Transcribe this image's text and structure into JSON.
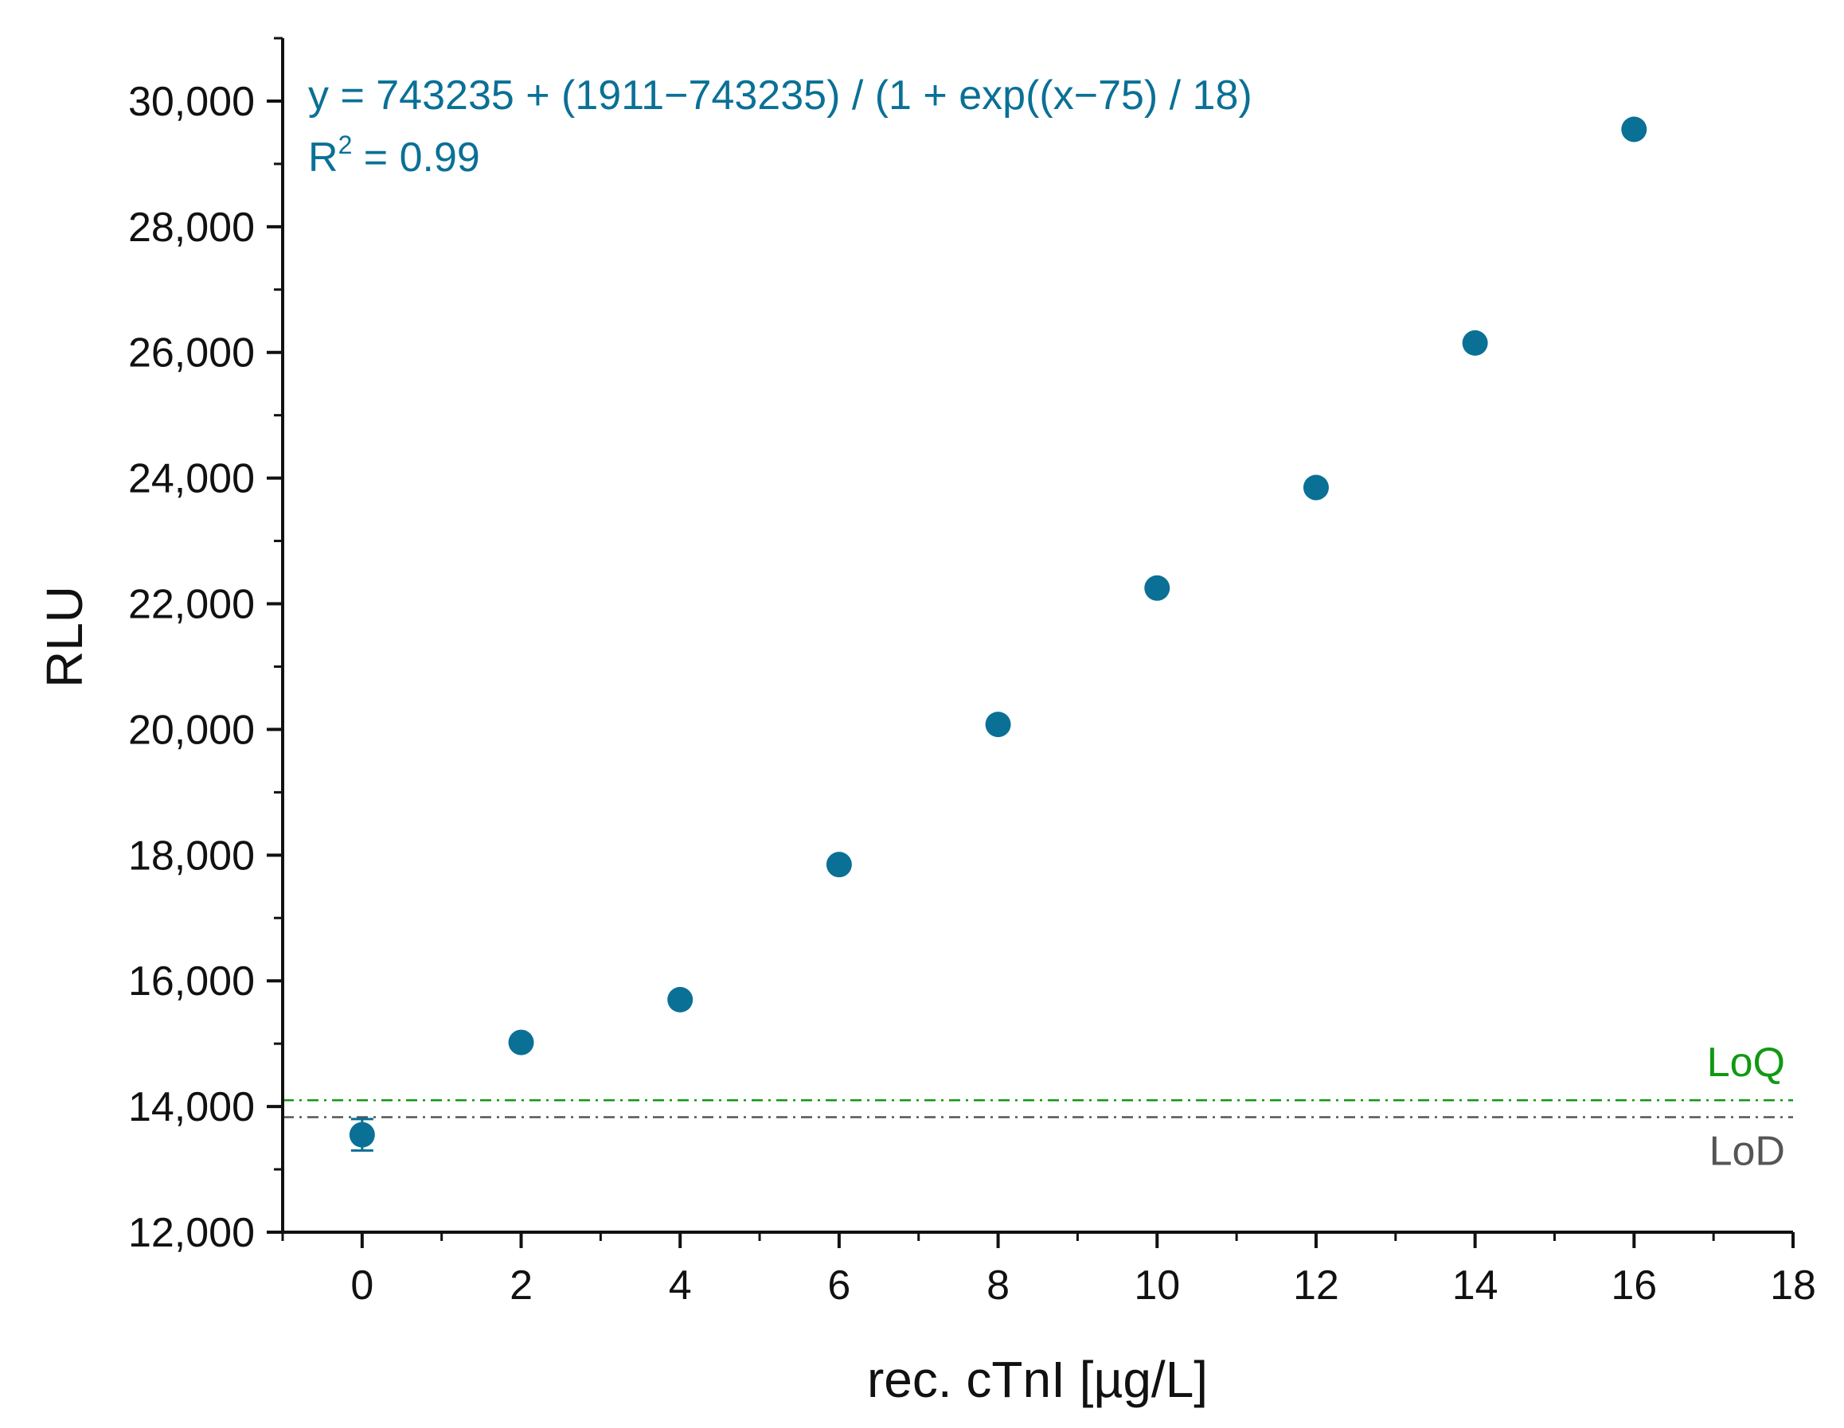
{
  "chart_data": {
    "type": "scatter",
    "xlabel": "rec. cTnI [µg/L]",
    "ylabel": "RLU",
    "xlim": [
      -1,
      18
    ],
    "ylim": [
      12000,
      31000
    ],
    "x_ticks": [
      0,
      2,
      4,
      6,
      8,
      10,
      12,
      14,
      16,
      18
    ],
    "x_tick_labels": [
      "0",
      "2",
      "4",
      "6",
      "8",
      "10",
      "12",
      "14",
      "16",
      "18"
    ],
    "y_ticks": [
      12000,
      14000,
      16000,
      18000,
      20000,
      22000,
      24000,
      26000,
      28000,
      30000
    ],
    "y_tick_labels": [
      "12,000",
      "14,000",
      "16,000",
      "18,000",
      "20,000",
      "22,000",
      "24,000",
      "26,000",
      "28,000",
      "30,000"
    ],
    "grid": false,
    "series": [
      {
        "x": [
          0,
          2,
          4,
          6,
          8,
          10,
          12,
          14,
          16
        ],
        "y": [
          13550,
          15020,
          15700,
          17850,
          20080,
          22250,
          23850,
          26150,
          29550
        ],
        "error": [
          250,
          0,
          0,
          0,
          0,
          0,
          0,
          0,
          0
        ],
        "color": "#0a7096"
      }
    ],
    "fit": {
      "equation": "y = 743235 + (1911−743235) / (1 + exp((x−75) / 18)",
      "r2_prefix": "R",
      "r2_sup": "2",
      "r2_value": " = 0.99",
      "A1": 743235,
      "A2": 1911,
      "x0": 75,
      "dx": 18,
      "x_range": [
        0,
        16
      ],
      "color": "#0a7096"
    },
    "reference_lines": [
      {
        "label": "LoQ",
        "y": 14100,
        "color": "#119911"
      },
      {
        "label": "LoD",
        "y": 13830,
        "color": "#555555"
      }
    ]
  }
}
